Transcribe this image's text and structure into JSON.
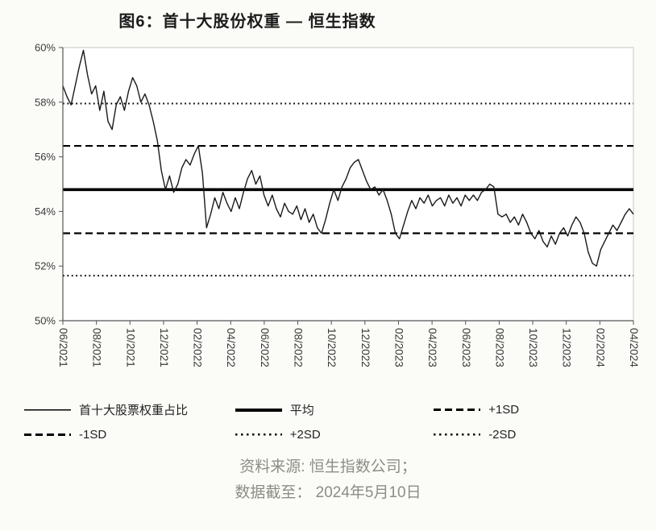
{
  "title": "图6：首十大股份权重 — 恒生指数",
  "footer": {
    "source": "资料来源: 恒生指数公司；",
    "cutoff": "数据截至： 2024年5月10日"
  },
  "legend": {
    "items": [
      {
        "label": "首十大股票权重占比",
        "style": "solid-thin"
      },
      {
        "label": "平均",
        "style": "solid-thick"
      },
      {
        "label": "+1SD",
        "style": "dashed"
      },
      {
        "label": "-1SD",
        "style": "dashed"
      },
      {
        "label": "+2SD",
        "style": "dotted"
      },
      {
        "label": "-2SD",
        "style": "dotted"
      }
    ]
  },
  "chart_data": {
    "type": "line",
    "title": "图6：首十大股份权重 — 恒生指数",
    "xlabel": "",
    "ylabel": "",
    "ylim": [
      50,
      60
    ],
    "grid": false,
    "legend_position": "bottom",
    "line_color": "#1a1a1a",
    "yticks": [
      {
        "value": 50,
        "label": "50%"
      },
      {
        "value": 52,
        "label": "52%"
      },
      {
        "value": 54,
        "label": "54%"
      },
      {
        "value": 56,
        "label": "56%"
      },
      {
        "value": 58,
        "label": "58%"
      },
      {
        "value": 60,
        "label": "60%"
      }
    ],
    "x_ticks": [
      "06/2021",
      "08/2021",
      "10/2021",
      "12/2021",
      "02/2022",
      "04/2022",
      "06/2022",
      "08/2022",
      "10/2022",
      "12/2022",
      "02/2023",
      "04/2023",
      "06/2023",
      "08/2023",
      "10/2023",
      "12/2023",
      "02/2024",
      "04/2024"
    ],
    "reference_lines": [
      {
        "key": "mean-line",
        "name": "平均",
        "value": 54.8,
        "style": "solid-thick"
      },
      {
        "key": "plus-1sd-line",
        "name": "+1SD",
        "value": 56.4,
        "style": "dashed"
      },
      {
        "key": "minus-1sd-line",
        "name": "-1SD",
        "value": 53.2,
        "style": "dashed"
      },
      {
        "key": "plus-2sd-line",
        "name": "+2SD",
        "value": 57.95,
        "style": "dotted"
      },
      {
        "key": "minus-2sd-line",
        "name": "-2SD",
        "value": 51.65,
        "style": "dotted"
      }
    ],
    "series": [
      {
        "name": "首十大股票权重占比",
        "values": [
          58.6,
          58.2,
          57.9,
          58.6,
          59.3,
          59.9,
          59.0,
          58.3,
          58.6,
          57.7,
          58.4,
          57.3,
          57.0,
          57.9,
          58.2,
          57.7,
          58.4,
          58.9,
          58.6,
          58.0,
          58.3,
          57.9,
          57.3,
          56.6,
          55.5,
          54.8,
          55.3,
          54.7,
          55.0,
          55.6,
          55.9,
          55.7,
          56.1,
          56.4,
          55.4,
          53.4,
          53.9,
          54.5,
          54.1,
          54.7,
          54.3,
          54.0,
          54.5,
          54.1,
          54.7,
          55.2,
          55.5,
          55.0,
          55.3,
          54.6,
          54.2,
          54.6,
          54.1,
          53.8,
          54.3,
          54.0,
          53.9,
          54.2,
          53.7,
          54.1,
          53.6,
          53.9,
          53.4,
          53.2,
          53.7,
          54.3,
          54.8,
          54.4,
          54.9,
          55.2,
          55.6,
          55.8,
          55.9,
          55.5,
          55.1,
          54.8,
          54.9,
          54.6,
          54.8,
          54.4,
          53.9,
          53.2,
          53.0,
          53.5,
          54.0,
          54.4,
          54.1,
          54.5,
          54.3,
          54.6,
          54.2,
          54.4,
          54.5,
          54.2,
          54.6,
          54.3,
          54.5,
          54.2,
          54.6,
          54.4,
          54.6,
          54.4,
          54.7,
          54.8,
          55.0,
          54.9,
          53.9,
          53.8,
          53.9,
          53.6,
          53.8,
          53.5,
          53.9,
          53.6,
          53.2,
          53.0,
          53.3,
          52.9,
          52.7,
          53.1,
          52.8,
          53.2,
          53.4,
          53.1,
          53.5,
          53.8,
          53.6,
          53.2,
          52.5,
          52.1,
          52.0,
          52.6,
          52.9,
          53.2,
          53.5,
          53.3,
          53.6,
          53.9,
          54.1,
          53.9
        ]
      }
    ]
  }
}
